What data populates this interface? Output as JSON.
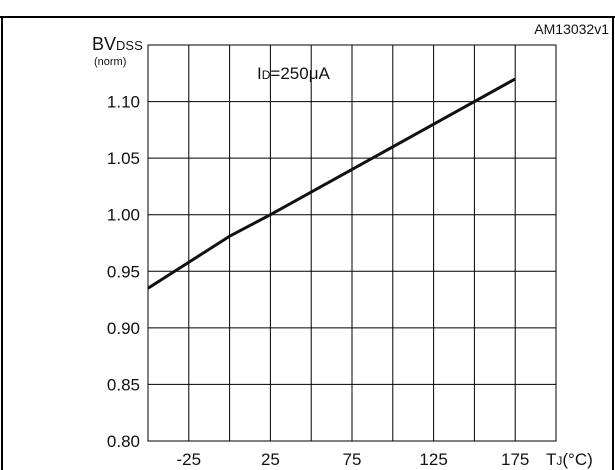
{
  "chart_data": {
    "type": "line",
    "id_label": "AM13032v1",
    "ylabel": {
      "main": "BV",
      "subscript": "DSS",
      "note": "(norm)"
    },
    "xlabel": {
      "main": "T",
      "subscript": "J",
      "unit": "(°C)"
    },
    "annotation": {
      "main": "I",
      "subscript": "D",
      "rest": "=250μA"
    },
    "xlim": [
      -50,
      200
    ],
    "ylim": [
      0.8,
      1.15
    ],
    "x_ticks": [
      -25,
      25,
      75,
      125,
      175
    ],
    "x_tick_labels": [
      "-25",
      "25",
      "75",
      "125",
      "175"
    ],
    "y_ticks": [
      0.8,
      0.85,
      0.9,
      0.95,
      1.0,
      1.05,
      1.1
    ],
    "y_tick_labels": [
      "0.80",
      "0.85",
      "0.90",
      "0.95",
      "1.00",
      "1.05",
      "1.10"
    ],
    "grid": true,
    "series": [
      {
        "x": [
          -50,
          -25,
          0,
          25,
          75,
          125,
          175
        ],
        "y": [
          0.935,
          0.958,
          0.981,
          1.0,
          1.04,
          1.08,
          1.12
        ]
      }
    ]
  }
}
